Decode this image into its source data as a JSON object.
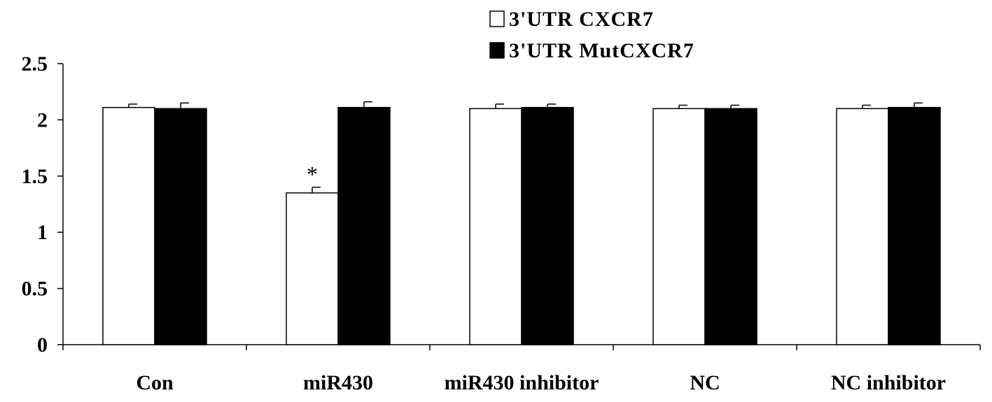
{
  "chart_data": {
    "type": "bar",
    "categories": [
      "Con",
      "miR430",
      "miR430 inhibitor",
      "NC",
      "NC inhibitor"
    ],
    "series": [
      {
        "name": "3'UTR CXCR7",
        "values": [
          2.11,
          1.35,
          2.1,
          2.1,
          2.1
        ],
        "errors": [
          0.03,
          0.05,
          0.04,
          0.03,
          0.03
        ],
        "color": "#ffffff"
      },
      {
        "name": "3'UTR MutCXCR7",
        "values": [
          2.1,
          2.11,
          2.11,
          2.1,
          2.11
        ],
        "errors": [
          0.05,
          0.05,
          0.03,
          0.03,
          0.04
        ],
        "color": "#000000"
      }
    ],
    "ylim": [
      0,
      2.5
    ],
    "yticks": [
      "0",
      "0.5",
      "1",
      "1.5",
      "2",
      "2.5"
    ],
    "ytick_values": [
      0,
      0.5,
      1,
      1.5,
      2,
      2.5
    ],
    "annotations": [
      {
        "category": "miR430",
        "series": 0,
        "text": "*"
      }
    ],
    "grid": false,
    "legend_position": "top-center",
    "xlabel": "",
    "ylabel": "",
    "title": ""
  }
}
